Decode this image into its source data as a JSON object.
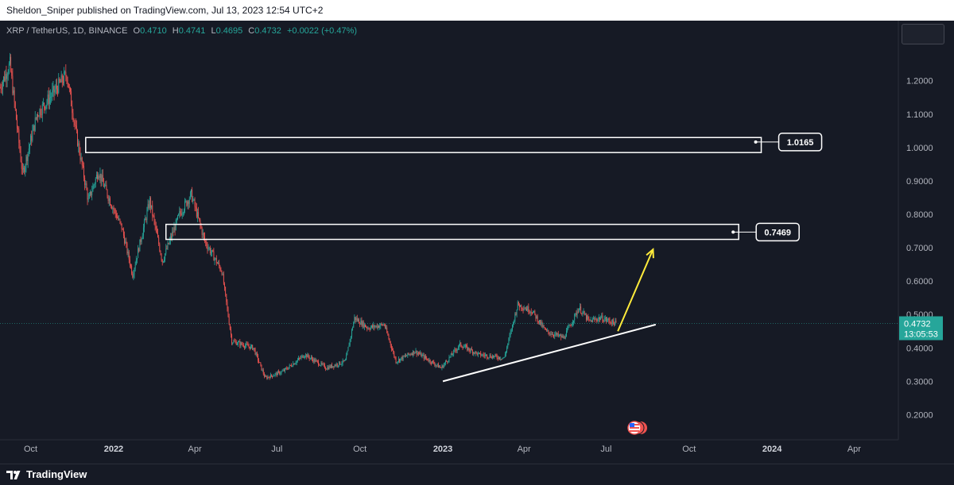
{
  "publisher_line": "Sheldon_Sniper published on TradingView.com, Jul 13, 2023 12:54 UTC+2",
  "legend": {
    "symbol": "XRP / TetherUS, 1D, BINANCE",
    "open_label": "O",
    "open": "0.4710",
    "high_label": "H",
    "high": "0.4741",
    "low_label": "L",
    "low": "0.4695",
    "close_label": "C",
    "close": "0.4732",
    "change": "+0.0022 (+0.47%)"
  },
  "footer": {
    "brand": "TradingView"
  },
  "colors": {
    "background": "#161a25",
    "up": "#26a69a",
    "down": "#ef5350",
    "zone": "#ffffff",
    "arrow": "#ffeb3b",
    "price_tag": "#26a69a"
  },
  "chart_data": {
    "type": "candlestick",
    "title": "XRP / TetherUS, 1D, BINANCE",
    "x_tick_labels": [
      "Oct",
      "2022",
      "Apr",
      "Jul",
      "Oct",
      "2023",
      "Apr",
      "Jul",
      "Oct",
      "2024",
      "Apr"
    ],
    "x_ticks": [
      {
        "label": "Oct",
        "date": "2021-10-01"
      },
      {
        "label": "2022",
        "date": "2022-01-01"
      },
      {
        "label": "Apr",
        "date": "2022-04-01"
      },
      {
        "label": "Jul",
        "date": "2022-07-01"
      },
      {
        "label": "Oct",
        "date": "2022-10-01"
      },
      {
        "label": "2023",
        "date": "2023-01-01"
      },
      {
        "label": "Apr",
        "date": "2023-04-01"
      },
      {
        "label": "Jul",
        "date": "2023-07-01"
      },
      {
        "label": "Oct",
        "date": "2023-10-01"
      },
      {
        "label": "2024",
        "date": "2024-01-01"
      },
      {
        "label": "Apr",
        "date": "2024-04-01"
      }
    ],
    "y_tick_labels": [
      "1.2000",
      "1.1000",
      "1.0000",
      "0.9000",
      "0.8000",
      "0.7000",
      "0.6000",
      "0.5000",
      "0.4000",
      "0.3000",
      "0.2000"
    ],
    "y_ticks": [
      1.2,
      1.1,
      1.0,
      0.9,
      0.8,
      0.7,
      0.6,
      0.5,
      0.4,
      0.3,
      0.2
    ],
    "ylim": [
      0.125,
      1.38
    ],
    "xlim": [
      "2021-08-28",
      "2024-05-20"
    ],
    "price_path": [
      {
        "date": "2021-08-28",
        "price": 1.18
      },
      {
        "date": "2021-09-08",
        "price": 1.25
      },
      {
        "date": "2021-09-22",
        "price": 0.92
      },
      {
        "date": "2021-10-08",
        "price": 1.1
      },
      {
        "date": "2021-10-25",
        "price": 1.16
      },
      {
        "date": "2021-11-10",
        "price": 1.22
      },
      {
        "date": "2021-11-20",
        "price": 1.05
      },
      {
        "date": "2021-12-04",
        "price": 0.84
      },
      {
        "date": "2021-12-15",
        "price": 0.93
      },
      {
        "date": "2021-12-28",
        "price": 0.84
      },
      {
        "date": "2022-01-10",
        "price": 0.76
      },
      {
        "date": "2022-01-22",
        "price": 0.62
      },
      {
        "date": "2022-02-10",
        "price": 0.84
      },
      {
        "date": "2022-02-24",
        "price": 0.66
      },
      {
        "date": "2022-03-15",
        "price": 0.8
      },
      {
        "date": "2022-03-28",
        "price": 0.86
      },
      {
        "date": "2022-04-12",
        "price": 0.72
      },
      {
        "date": "2022-05-01",
        "price": 0.63
      },
      {
        "date": "2022-05-12",
        "price": 0.42
      },
      {
        "date": "2022-06-05",
        "price": 0.4
      },
      {
        "date": "2022-06-18",
        "price": 0.31
      },
      {
        "date": "2022-07-08",
        "price": 0.33
      },
      {
        "date": "2022-08-01",
        "price": 0.38
      },
      {
        "date": "2022-08-25",
        "price": 0.34
      },
      {
        "date": "2022-09-15",
        "price": 0.36
      },
      {
        "date": "2022-09-25",
        "price": 0.49
      },
      {
        "date": "2022-10-10",
        "price": 0.46
      },
      {
        "date": "2022-10-28",
        "price": 0.47
      },
      {
        "date": "2022-11-10",
        "price": 0.36
      },
      {
        "date": "2022-12-01",
        "price": 0.39
      },
      {
        "date": "2022-12-30",
        "price": 0.34
      },
      {
        "date": "2023-01-20",
        "price": 0.41
      },
      {
        "date": "2023-02-10",
        "price": 0.38
      },
      {
        "date": "2023-03-10",
        "price": 0.37
      },
      {
        "date": "2023-03-25",
        "price": 0.53
      },
      {
        "date": "2023-04-10",
        "price": 0.51
      },
      {
        "date": "2023-04-25",
        "price": 0.45
      },
      {
        "date": "2023-05-15",
        "price": 0.43
      },
      {
        "date": "2023-06-01",
        "price": 0.52
      },
      {
        "date": "2023-06-12",
        "price": 0.48
      },
      {
        "date": "2023-06-25",
        "price": 0.49
      },
      {
        "date": "2023-07-12",
        "price": 0.4732
      }
    ],
    "resistance_zones": [
      {
        "from_date": "2021-12-01",
        "to_date": "2023-12-20",
        "low": 0.985,
        "high": 1.03,
        "label": "1.0165",
        "level": 1.0165
      },
      {
        "from_date": "2022-02-28",
        "to_date": "2023-11-25",
        "low": 0.725,
        "high": 0.77,
        "label": "0.7469",
        "level": 0.7469
      }
    ],
    "trendline": {
      "from": {
        "date": "2023-01-01",
        "price": 0.3
      },
      "to": {
        "date": "2023-08-25",
        "price": 0.47
      }
    },
    "projection_arrow": {
      "from": {
        "date": "2023-07-14",
        "price": 0.45
      },
      "to": {
        "date": "2023-08-22",
        "price": 0.695
      }
    },
    "last_price": {
      "value": "0.4732",
      "countdown": "13:05:53",
      "price": 0.4732
    },
    "grid": false
  }
}
